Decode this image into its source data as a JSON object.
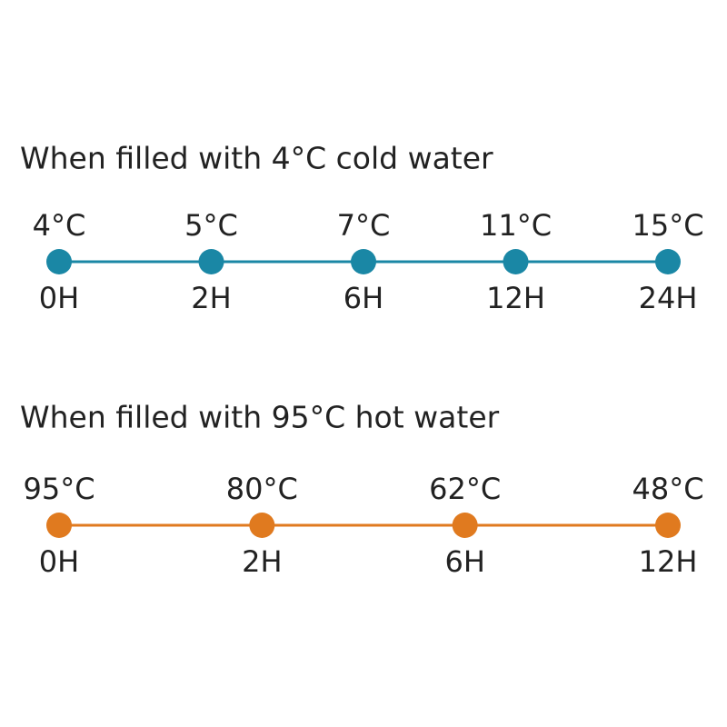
{
  "sections": [
    {
      "title": "When filled with 4°C cold water",
      "color": "#1a87a5",
      "points": [
        {
          "temp": "4°C",
          "time": "0H"
        },
        {
          "temp": "5°C",
          "time": "2H"
        },
        {
          "temp": "7°C",
          "time": "6H"
        },
        {
          "temp": "11°C",
          "time": "12H"
        },
        {
          "temp": "15°C",
          "time": "24H"
        }
      ]
    },
    {
      "title": "When filled with 95°C hot water",
      "color": "#e07a1f",
      "points": [
        {
          "temp": "95°C",
          "time": "0H"
        },
        {
          "temp": "80°C",
          "time": "2H"
        },
        {
          "temp": "62°C",
          "time": "6H"
        },
        {
          "temp": "48°C",
          "time": "12H"
        }
      ]
    }
  ]
}
